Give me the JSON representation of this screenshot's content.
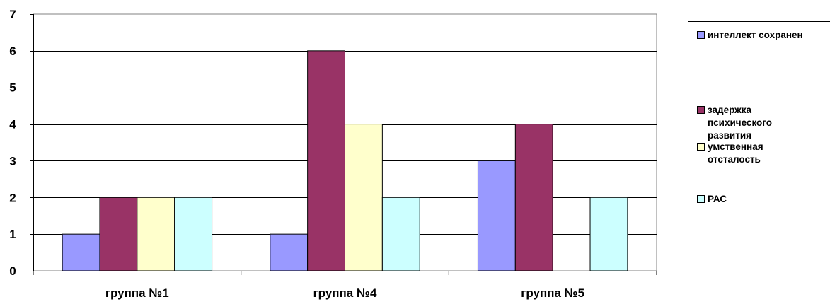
{
  "chart_data": {
    "type": "bar",
    "categories": [
      "группа №1",
      "группа №4",
      "группа №5"
    ],
    "series": [
      {
        "name": "интеллект сохранен",
        "color": "#9999ff",
        "values": [
          1,
          1,
          3
        ]
      },
      {
        "name": "задержка психического развития",
        "color": "#993366",
        "values": [
          2,
          6,
          4
        ]
      },
      {
        "name": "умственная отсталость",
        "color": "#ffffcc",
        "values": [
          2,
          4,
          0
        ]
      },
      {
        "name": "РАС",
        "color": "#ccffff",
        "values": [
          2,
          2,
          2
        ]
      }
    ],
    "yticks": [
      "0",
      "1",
      "2",
      "3",
      "4",
      "5",
      "6",
      "7"
    ],
    "ylim": [
      0,
      7
    ],
    "grid": true,
    "legend_position": "right",
    "title": "",
    "xlabel": "",
    "ylabel": ""
  },
  "legend": {
    "items": [
      {
        "label": "интеллект сохранен",
        "color": "#9999ff"
      },
      {
        "label": "задержка\nпсихического\nразвития",
        "color": "#993366"
      },
      {
        "label": "умственная\nотсталость",
        "color": "#ffffcc"
      },
      {
        "label": "РАС",
        "color": "#ccffff"
      }
    ]
  }
}
